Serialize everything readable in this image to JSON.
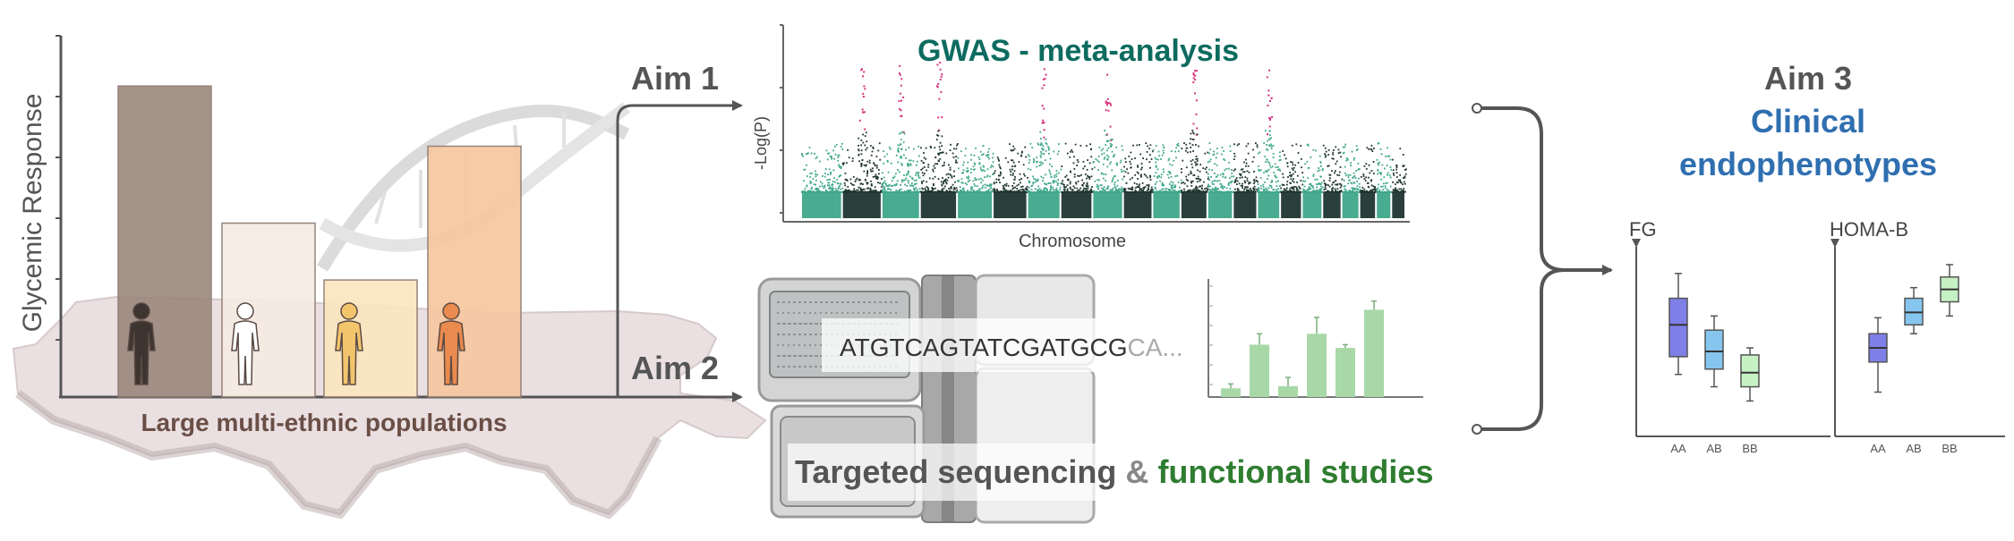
{
  "left_panel": {
    "y_axis_label": "Glycemic Response",
    "caption": "Large multi-ethnic populations",
    "bars": [
      {
        "relative_height": 0.93,
        "color": "#9c8a80"
      },
      {
        "relative_height": 0.52,
        "color": "#f5ebe2"
      },
      {
        "relative_height": 0.35,
        "color": "#fbe6c0"
      },
      {
        "relative_height": 0.75,
        "color": "#f6c8a0"
      }
    ],
    "figure_colors": [
      "#3e3530",
      "#ffffff",
      "#f2c56d",
      "#e98a4e"
    ]
  },
  "aims": {
    "aim1": "Aim 1",
    "aim2": "Aim 2",
    "aim3": "Aim 3",
    "aim3_sub_line1": "Clinical",
    "aim3_sub_line2": "endophenotypes"
  },
  "gwas": {
    "title": "GWAS - meta-analysis",
    "y_label": "-Log(P)",
    "x_label": "Chromosome",
    "colors": {
      "teal": "#3fa78a",
      "dark": "#1f3530",
      "hit": "#d6337d"
    }
  },
  "sequencing": {
    "dna_text": "ATGTCAGTATCGATGCG",
    "dna_tail": "CA...",
    "caption_part1": "Targeted sequencing",
    "caption_amp": "&",
    "caption_part2": "functional studies"
  },
  "functional_chart": {
    "values": [
      0.08,
      0.48,
      0.1,
      0.58,
      0.45,
      0.8
    ],
    "errors": [
      0.04,
      0.1,
      0.08,
      0.15,
      0.03,
      0.08
    ],
    "color": "#a9d8a8"
  },
  "clinical": {
    "fg": {
      "title": "FG",
      "groups": [
        "AA",
        "AB",
        "BB"
      ],
      "boxes": [
        {
          "min": 0.35,
          "q1": 0.45,
          "med": 0.63,
          "q3": 0.78,
          "max": 0.92,
          "color": "#7f7fe8"
        },
        {
          "min": 0.28,
          "q1": 0.38,
          "med": 0.48,
          "q3": 0.6,
          "max": 0.68,
          "color": "#86c6ee"
        },
        {
          "min": 0.2,
          "q1": 0.28,
          "med": 0.36,
          "q3": 0.46,
          "max": 0.5,
          "color": "#c6f1c4"
        }
      ]
    },
    "homa": {
      "title": "HOMA-B",
      "groups": [
        "AA",
        "AB",
        "BB"
      ],
      "boxes": [
        {
          "min": 0.25,
          "q1": 0.42,
          "med": 0.5,
          "q3": 0.58,
          "max": 0.67,
          "color": "#7f7fe8"
        },
        {
          "min": 0.58,
          "q1": 0.63,
          "med": 0.7,
          "q3": 0.78,
          "max": 0.84,
          "color": "#86c6ee"
        },
        {
          "min": 0.68,
          "q1": 0.76,
          "med": 0.83,
          "q3": 0.9,
          "max": 0.97,
          "color": "#c6f1c4"
        }
      ]
    }
  },
  "colors": {
    "aim_text": "#555555",
    "gwas_title": "#0d6b5f",
    "aim3_sub": "#2f6fb0",
    "caption_brown": "#6a4f47",
    "functional_green": "#2f7d30"
  }
}
